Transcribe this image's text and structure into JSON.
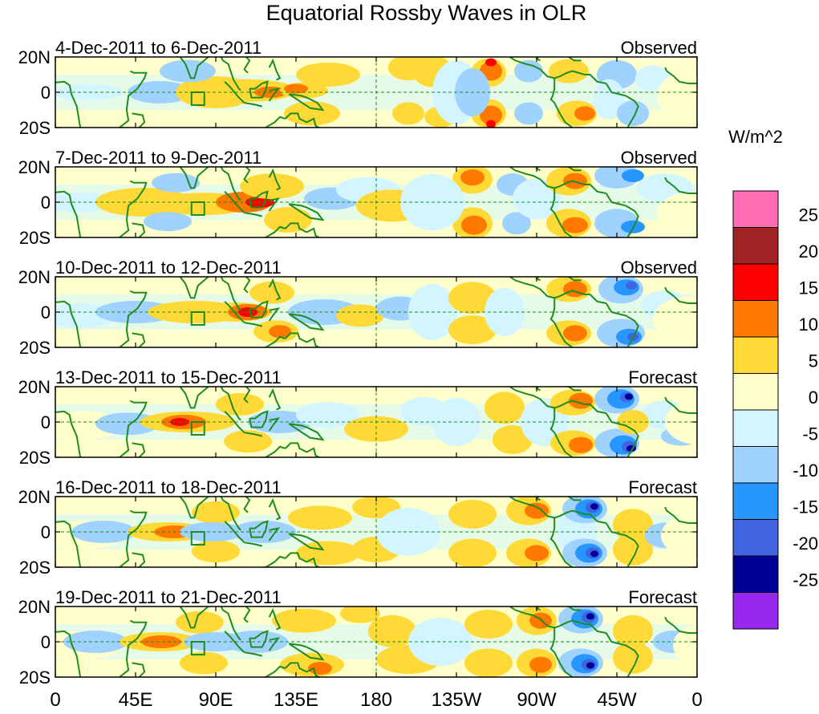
{
  "title": "Equatorial Rossby Waves in OLR",
  "panels": [
    {
      "date_range": "4-Dec-2011 to 6-Dec-2011",
      "status": "Observed"
    },
    {
      "date_range": "7-Dec-2011 to 9-Dec-2011",
      "status": "Observed"
    },
    {
      "date_range": "10-Dec-2011 to 12-Dec-2011",
      "status": "Observed"
    },
    {
      "date_range": "13-Dec-2011 to 15-Dec-2011",
      "status": "Forecast"
    },
    {
      "date_range": "16-Dec-2011 to 18-Dec-2011",
      "status": "Forecast"
    },
    {
      "date_range": "19-Dec-2011 to 21-Dec-2011",
      "status": "Forecast"
    }
  ],
  "lat_labels": [
    "20N",
    "0",
    "20S"
  ],
  "lon_labels": [
    "0",
    "45E",
    "90E",
    "135E",
    "180",
    "135W",
    "90W",
    "45W",
    "0"
  ],
  "colorbar": {
    "unit": "W/m^2",
    "tick_labels": [
      "25",
      "20",
      "15",
      "10",
      "5",
      "0",
      "-5",
      "-10",
      "-15",
      "-20",
      "-25"
    ],
    "colors": [
      "#ff6eb4",
      "#a02424",
      "#ff0000",
      "#ff7800",
      "#ffd936",
      "#ffffcc",
      "#d2f5ff",
      "#a0d2ff",
      "#2896ff",
      "#4164e1",
      "#000096",
      "#9628f0"
    ]
  },
  "fill_colors": {
    "pos5": "#ffd936",
    "pos10": "#ff7800",
    "pos15": "#ff0000",
    "pos0": "#ffffcc",
    "neg0": "#d2f5ff",
    "neg5": "#a0d2ff",
    "neg10": "#2896ff",
    "neg15": "#4164e1",
    "neg20": "#000096",
    "coast": "#1e8c1e"
  }
}
